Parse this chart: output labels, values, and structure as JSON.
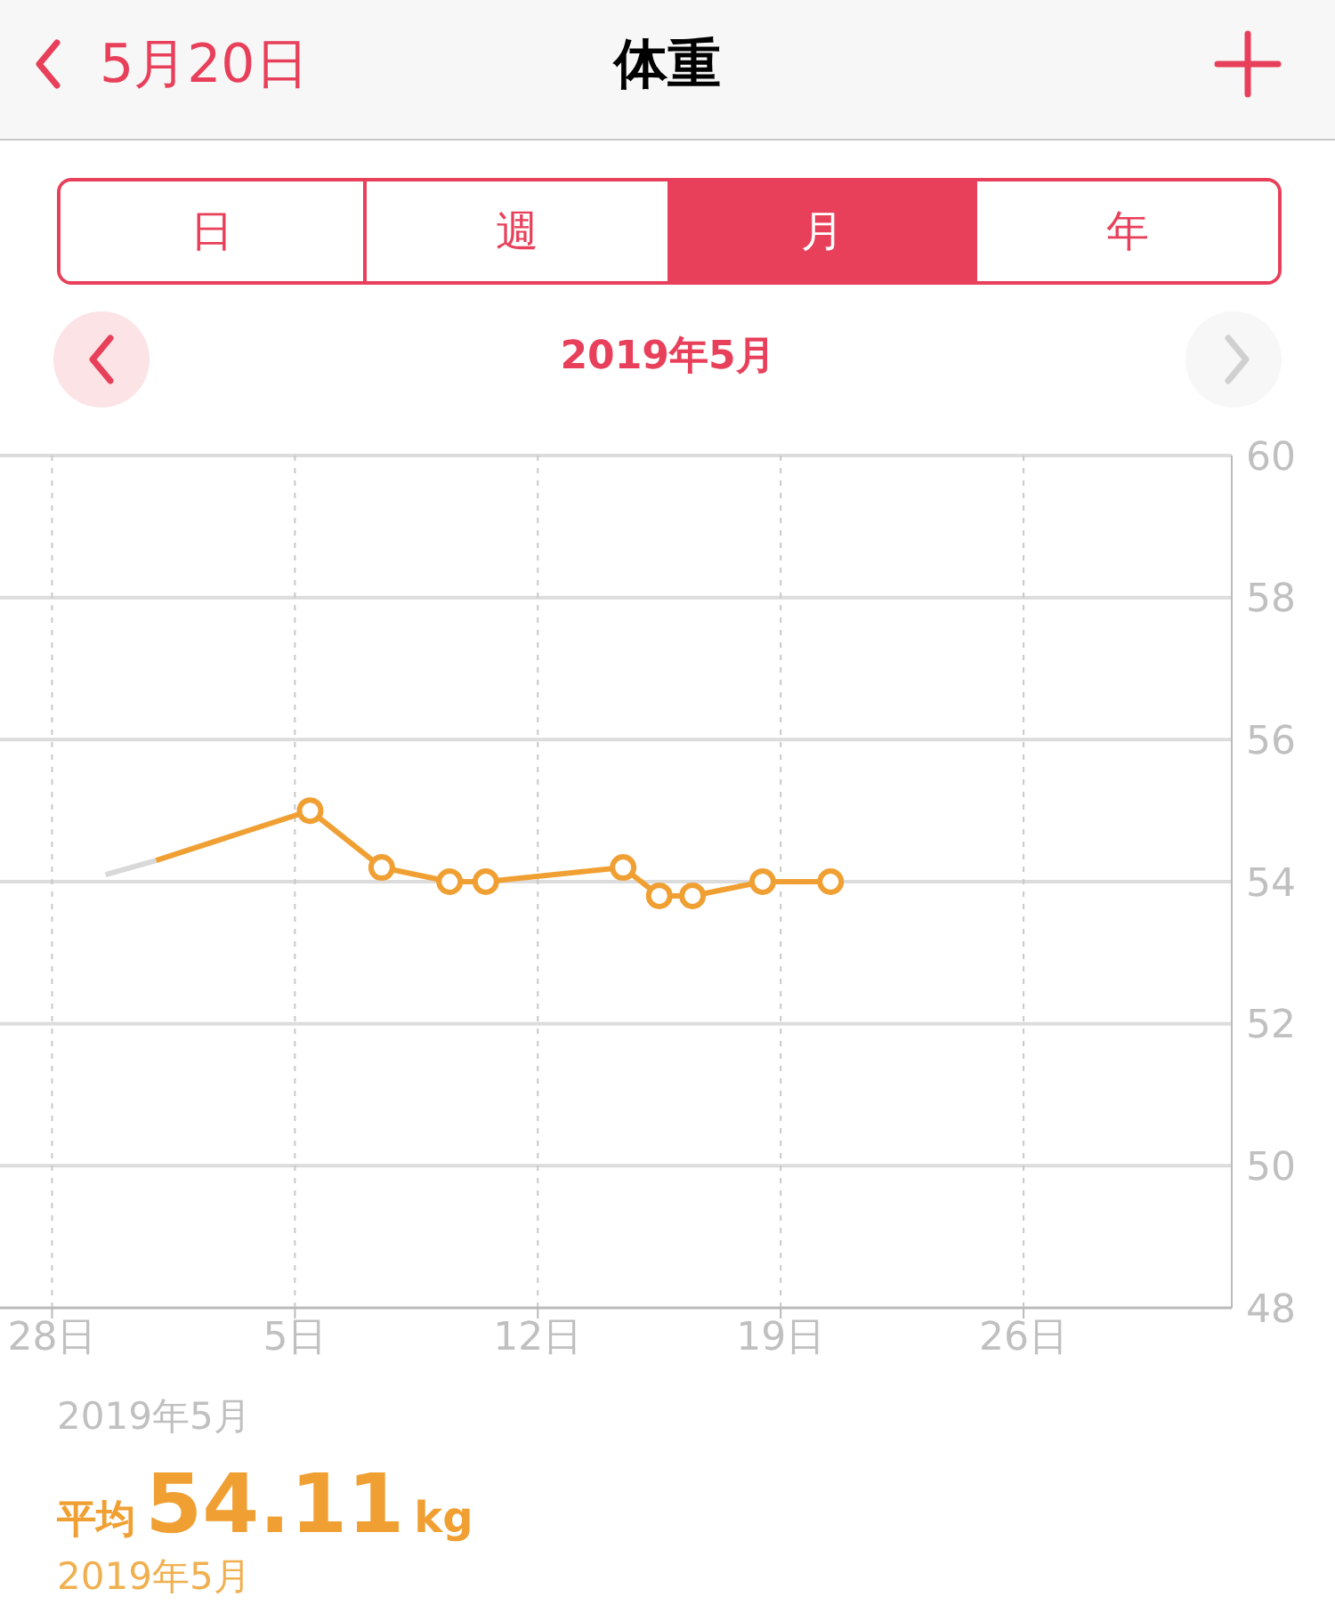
{
  "chart_data": {
    "type": "line",
    "title": "体重",
    "subtitle": "2019年5月",
    "annotations": [
      "5月20日",
      "日",
      "週",
      "月",
      "年",
      "2019年5月",
      "平均",
      "54.11",
      "kg",
      "2019年5月"
    ],
    "xlim": [
      "2019-04-26T12:00",
      "2019-06-01"
    ],
    "xticks": [
      {
        "value": "2019-04-28",
        "label": "28日"
      },
      {
        "value": "2019-05-05",
        "label": "5日"
      },
      {
        "value": "2019-05-12",
        "label": "12日"
      },
      {
        "value": "2019-05-19",
        "label": "19日"
      },
      {
        "value": "2019-05-26",
        "label": "26日"
      }
    ],
    "ylim": [
      48,
      60
    ],
    "yticks": [
      48,
      50,
      52,
      54,
      56,
      58,
      60
    ],
    "grid": true,
    "series": [
      {
        "color": "#d9d9d9",
        "marker": "none",
        "x": [
          "2019-04-29T13:00",
          "2019-05-01"
        ],
        "values": [
          54.1,
          54.3
        ]
      },
      {
        "color": "#f0a033",
        "x": [
          "2019-05-01",
          "2019-05-05T10:30"
        ],
        "values": [
          54.3,
          55.0
        ]
      },
      {
        "color": "#f0a033",
        "marker": "circle",
        "x": [
          "2019-05-05T10:30",
          "2019-05-07T12:00",
          "2019-05-09T11:00",
          "2019-05-10T12:00",
          "2019-05-14T11:00",
          "2019-05-15T12:00",
          "2019-05-16T11:00",
          "2019-05-18T11:30",
          "2019-05-20T10:30"
        ],
        "values": [
          55.0,
          54.2,
          54.0,
          54.0,
          54.2,
          53.8,
          53.8,
          54.0,
          54.0
        ]
      }
    ]
  }
}
